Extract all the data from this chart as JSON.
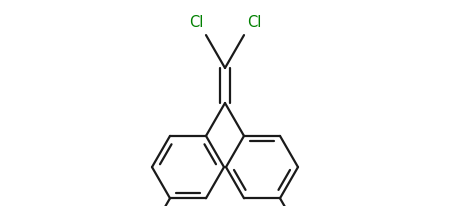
{
  "background_color": "#ffffff",
  "bond_color": "#1a1a1a",
  "atom_color": "#008000",
  "line_width": 1.6,
  "font_size": 10.5,
  "figsize": [
    4.5,
    2.06
  ],
  "dpi": 100
}
